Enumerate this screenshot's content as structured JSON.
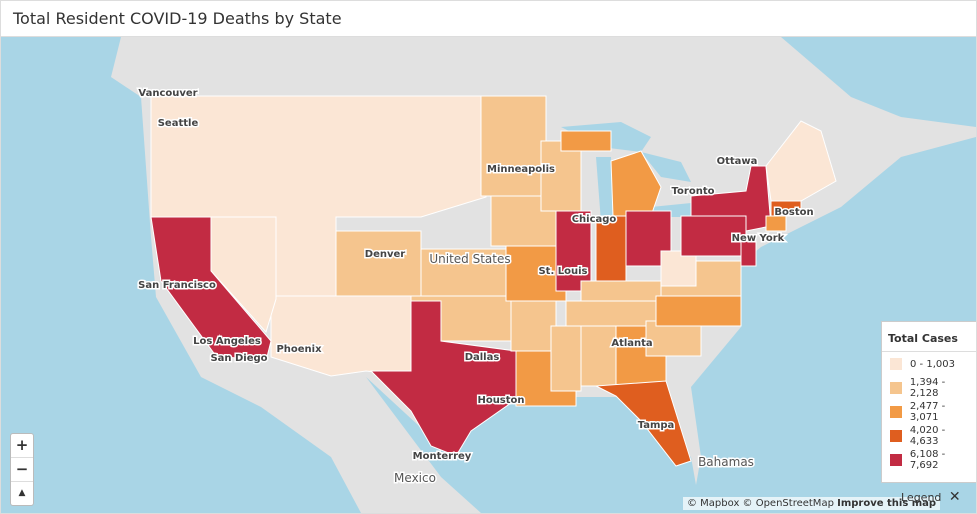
{
  "header": {
    "title": "Total Resident COVID-19 Deaths by State"
  },
  "map": {
    "labels": [
      "Vancouver",
      "Seattle",
      "Minneapolis",
      "Ottawa",
      "Toronto",
      "Chicago",
      "Boston",
      "New York",
      "Denver",
      "United States",
      "St. Louis",
      "San Francisco",
      "Los Angeles",
      "San Diego",
      "Phoenix",
      "Dallas",
      "Atlanta",
      "Houston",
      "Tampa",
      "Monterrey",
      "Bahamas",
      "Mexico"
    ]
  },
  "legend": {
    "title": "Total Cases",
    "items": [
      {
        "label": "0 - 1,003",
        "color": "#fbe6d5"
      },
      {
        "label": "1,394 - 2,128",
        "color": "#f5c58e"
      },
      {
        "label": "2,477 - 3,071",
        "color": "#f29a45"
      },
      {
        "label": "4,020 - 4,633",
        "color": "#df5e1f"
      },
      {
        "label": "6,108 - 7,692",
        "color": "#c22b43"
      }
    ]
  },
  "controls": {
    "zoom_in": "+",
    "zoom_out": "−",
    "reset": "▲"
  },
  "attribution": {
    "text": "© Mapbox © OpenStreetMap",
    "improve": "Improve this map"
  },
  "legend_toggle": {
    "label": "Legend",
    "close": "✕"
  }
}
